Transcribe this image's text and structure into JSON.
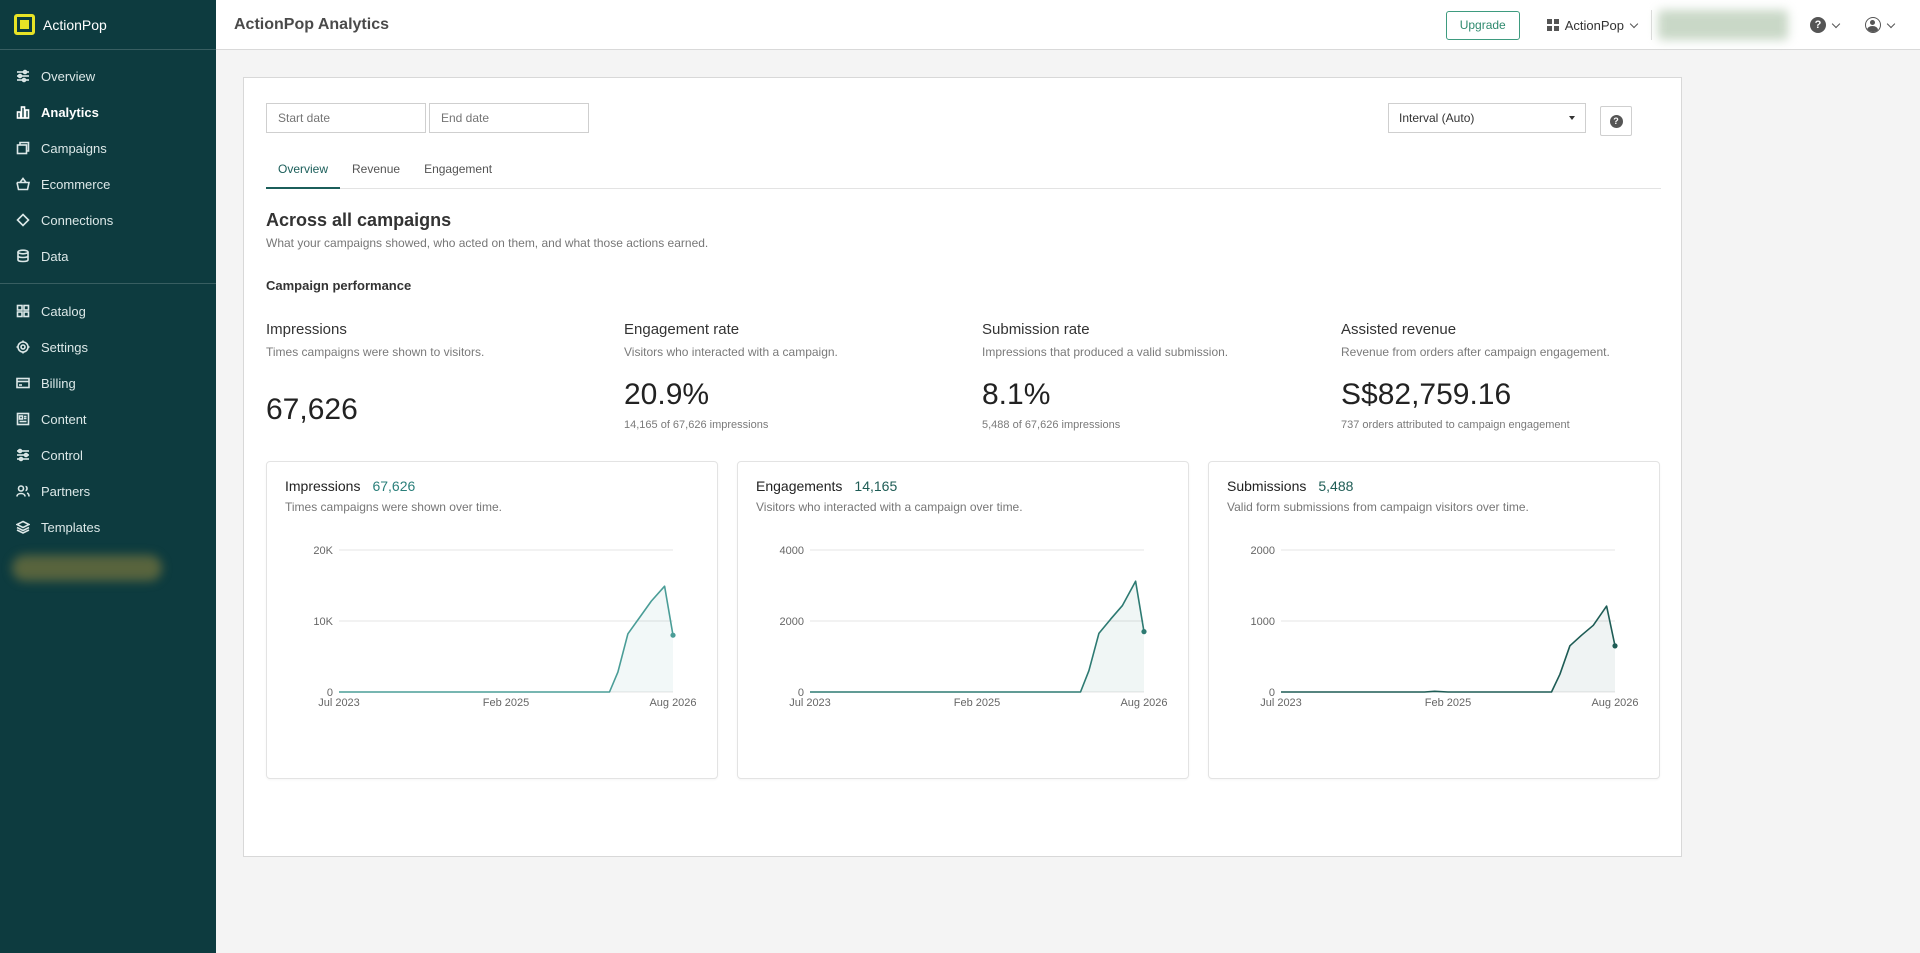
{
  "brand": {
    "name": "ActionPop"
  },
  "sidebar": {
    "items_primary": [
      {
        "label": "Overview",
        "icon": "sliders-icon"
      },
      {
        "label": "Analytics",
        "icon": "bar-chart-icon",
        "active": true
      },
      {
        "label": "Campaigns",
        "icon": "layers-window-icon"
      },
      {
        "label": "Ecommerce",
        "icon": "basket-icon"
      },
      {
        "label": "Connections",
        "icon": "diamond-link-icon"
      },
      {
        "label": "Data",
        "icon": "database-icon"
      }
    ],
    "items_secondary": [
      {
        "label": "Catalog",
        "icon": "grid-icon"
      },
      {
        "label": "Settings",
        "icon": "gear-icon"
      },
      {
        "label": "Billing",
        "icon": "credit-card-icon"
      },
      {
        "label": "Content",
        "icon": "document-icon"
      },
      {
        "label": "Control",
        "icon": "tune-icon"
      },
      {
        "label": "Partners",
        "icon": "users-icon"
      },
      {
        "label": "Templates",
        "icon": "stack-icon"
      }
    ]
  },
  "header": {
    "title": "ActionPop Analytics",
    "upgrade_label": "Upgrade",
    "org_label": "ActionPop"
  },
  "filters": {
    "start_placeholder": "Start date",
    "end_placeholder": "End date",
    "interval_value": "Interval (Auto)"
  },
  "tabs": [
    "Overview",
    "Revenue",
    "Engagement"
  ],
  "section": {
    "title": "Across all campaigns",
    "subtitle": "What your campaigns showed, who acted on them, and what those actions earned.",
    "perf_title": "Campaign performance"
  },
  "kpis": [
    {
      "name": "Impressions",
      "desc": "Times campaigns were shown to visitors.",
      "value": "67,626",
      "foot": ""
    },
    {
      "name": "Engagement rate",
      "desc": "Visitors who interacted with a campaign.",
      "value": "20.9%",
      "foot": "14,165 of 67,626 impressions"
    },
    {
      "name": "Submission rate",
      "desc": "Impressions that produced a valid submission.",
      "value": "8.1%",
      "foot": "5,488 of 67,626 impressions"
    },
    {
      "name": "Assisted revenue",
      "desc": "Revenue from orders after campaign engagement.",
      "value": "S$82,759.16",
      "foot": "737 orders attributed to campaign engagement"
    }
  ],
  "colors": {
    "sidebar": "#0d3b3f",
    "accent": "#2a7f7a",
    "line_light": "#4a9d97",
    "line_dark": "#1e5c55",
    "upgrade": "#3e9b7f"
  },
  "chart_data": [
    {
      "type": "area",
      "title": "Impressions",
      "total": "67,626",
      "subtitle": "Times campaigns were shown over time.",
      "y_ticks": [
        "0",
        "10K",
        "20K"
      ],
      "ylim": [
        0,
        20000
      ],
      "x_ticks": [
        "Jul 2023",
        "Feb 2025",
        "Aug 2026"
      ],
      "x": [
        0,
        0.81,
        0.835,
        0.865,
        0.9,
        0.935,
        0.975,
        1.0
      ],
      "values": [
        0,
        0,
        2800,
        8200,
        10500,
        12800,
        14900,
        8000
      ],
      "color": "#4a9d97"
    },
    {
      "type": "area",
      "title": "Engagements",
      "total": "14,165",
      "subtitle": "Visitors who interacted with a campaign over time.",
      "y_ticks": [
        "0",
        "2000",
        "4000"
      ],
      "ylim": [
        0,
        4000
      ],
      "x_ticks": [
        "Jul 2023",
        "Feb 2025",
        "Aug 2026"
      ],
      "x": [
        0,
        0.81,
        0.835,
        0.865,
        0.9,
        0.935,
        0.975,
        1.0
      ],
      "values": [
        0,
        0,
        600,
        1650,
        2050,
        2430,
        3120,
        1700
      ],
      "color": "#2d7a72"
    },
    {
      "type": "area",
      "title": "Submissions",
      "total": "5,488",
      "subtitle": "Valid form submissions from campaign visitors over time.",
      "y_ticks": [
        "0",
        "1000",
        "2000"
      ],
      "ylim": [
        0,
        2000
      ],
      "x_ticks": [
        "Jul 2023",
        "Feb 2025",
        "Aug 2026"
      ],
      "x": [
        0,
        0.43,
        0.46,
        0.5,
        0.81,
        0.835,
        0.865,
        0.9,
        0.935,
        0.975,
        1.0
      ],
      "values": [
        0,
        0,
        10,
        0,
        0,
        250,
        650,
        800,
        940,
        1210,
        650
      ],
      "color": "#1e5c55"
    }
  ]
}
